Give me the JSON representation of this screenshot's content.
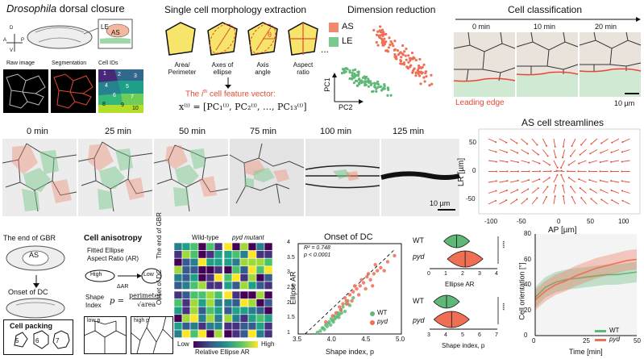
{
  "colors": {
    "as": "#f08a6e",
    "le": "#7cc98e",
    "as_dot": "#ef6f55",
    "le_dot": "#5fb878",
    "cell_yellow": "#f7e46a",
    "line_red": "#e24a33"
  },
  "panel1": {
    "title_italic": "Drosophila",
    "title_rest": "dorsal closure",
    "axis_d": "D",
    "axis_a": "A",
    "axis_p": "P",
    "axis_v": "V",
    "label_le": "LE",
    "label_as": "AS",
    "img_labels": [
      "Raw image",
      "Segmentation",
      "Cell IDs"
    ],
    "cell_ids": [
      "1",
      "2",
      "3",
      "4",
      "5",
      "6",
      "7",
      "8",
      "9",
      "10"
    ]
  },
  "panel2": {
    "title": "Single cell morphology extraction",
    "shape_labels": [
      [
        "Area/",
        "Perimeter"
      ],
      [
        "Axes of",
        "ellipse"
      ],
      [
        "Axis",
        "angle"
      ],
      [
        "Aspect",
        "ratio"
      ]
    ],
    "theta": "θ",
    "ellipsis": "...",
    "vector_title_pre": "The ",
    "vector_title_i": "i",
    "vector_title_th": "th",
    "vector_title_post": " cell feature vector:",
    "vector_formula": "x⁽ⁱ⁾ = [PC₁⁽ⁱ⁾, PC₂⁽ⁱ⁾, …, PC₁₃⁽ⁱ⁾]"
  },
  "panel3": {
    "title": "Dimension reduction",
    "legend": [
      "AS",
      "LE"
    ],
    "xlabel": "PC2",
    "ylabel": "PC1"
  },
  "panel4": {
    "title": "Cell classification",
    "times": [
      "0 min",
      "10 min",
      "20 min"
    ],
    "leading_edge": "Leading edge",
    "scale": "10 µm"
  },
  "row2": {
    "times": [
      "0 min",
      "25 min",
      "50 min",
      "75 min",
      "100 min",
      "125 min"
    ],
    "scale": "10 µm"
  },
  "streamlines": {
    "title": "AS cell streamlines",
    "xlabel": "AP [µm]",
    "ylabel": "LR [µm]",
    "xticks": [
      "-100",
      "-50",
      "0",
      "50",
      "100"
    ],
    "yticks": [
      "50",
      "0",
      "-50"
    ]
  },
  "bottom_left": {
    "gbr_end": "The end of GBR",
    "as": "AS",
    "dc_onset": "Onset of DC",
    "packing_title": "Cell packing",
    "packing_nums": [
      "5",
      "6",
      "7"
    ],
    "aniso_title": "Cell anisotropy",
    "fitted": [
      "Fitted Ellipse",
      "Aspect Ratio (AR)"
    ],
    "high": "High",
    "low": "Low",
    "dar": "ΔAR",
    "shape_index": [
      "Shape",
      "Index"
    ],
    "p_eq": "p =",
    "frac_num": "perimeter",
    "frac_den": "√area",
    "low_p": "low p",
    "high_p": "high p"
  },
  "heatmap": {
    "col_labels": [
      "Wild-type",
      "pyd mutant"
    ],
    "row_labels": [
      "The end of GBR",
      "Onset of DC"
    ],
    "cbar_low": "Low",
    "cbar_high": "High",
    "cbar_title": "Relative Ellipse AR"
  },
  "chart_data": [
    {
      "type": "scatter",
      "title": "Onset of DC",
      "xlabel": "Shape index, p",
      "ylabel": "Ellipse AR",
      "xlim": [
        3.5,
        5.0
      ],
      "ylim": [
        1,
        4
      ],
      "xticks": [
        "3.5",
        "4.0",
        "4.5",
        "5.0"
      ],
      "yticks": [
        "1",
        "1.5",
        "2",
        "2.5",
        "3",
        "3.5",
        "4"
      ],
      "annotation": [
        "R² = 0.748",
        "p < 0.0001"
      ],
      "legend": [
        "WT",
        "pyd"
      ],
      "series": [
        {
          "name": "WT",
          "x": [
            3.78,
            3.82,
            3.85,
            3.9,
            3.92,
            3.95,
            3.98,
            4.0,
            4.02,
            4.05,
            4.08,
            4.1,
            4.12,
            4.15,
            4.18,
            4.2,
            4.22,
            3.88,
            3.93,
            4.03,
            4.07,
            4.13,
            3.97,
            4.01,
            4.25,
            4.3,
            3.86,
            4.09
          ],
          "y": [
            1.05,
            1.1,
            1.2,
            1.3,
            1.25,
            1.4,
            1.5,
            1.45,
            1.6,
            1.55,
            1.7,
            1.65,
            1.8,
            1.9,
            1.75,
            2.0,
            2.1,
            1.15,
            1.35,
            1.5,
            1.6,
            1.7,
            1.3,
            1.4,
            1.95,
            2.2,
            1.2,
            1.55
          ]
        },
        {
          "name": "pyd",
          "x": [
            3.9,
            4.0,
            4.05,
            4.1,
            4.15,
            4.2,
            4.25,
            4.3,
            4.35,
            4.4,
            4.45,
            4.5,
            4.55,
            4.6,
            4.65,
            4.7,
            4.8,
            4.9,
            4.28,
            4.38,
            4.48,
            4.58,
            4.12,
            4.22,
            4.32,
            4.42,
            4.52,
            4.62,
            4.18,
            4.75
          ],
          "y": [
            1.4,
            1.6,
            1.7,
            1.9,
            2.0,
            2.1,
            2.3,
            2.4,
            2.5,
            2.6,
            2.7,
            2.9,
            2.8,
            3.0,
            3.1,
            3.2,
            3.4,
            3.6,
            2.1,
            2.3,
            2.5,
            2.6,
            1.8,
            2.0,
            2.6,
            2.8,
            3.0,
            3.3,
            2.2,
            3.1
          ]
        }
      ]
    },
    {
      "type": "violin",
      "xlabel": "Ellipse AR",
      "xticks": [
        "0",
        "1",
        "2",
        "3",
        "4"
      ],
      "xlim": [
        0,
        4
      ],
      "categories": [
        "WT",
        "pyd"
      ],
      "medians": [
        1.6,
        2.1
      ],
      "significance": "****"
    },
    {
      "type": "violin",
      "xlabel": "Shape index, p",
      "xticks": [
        "3",
        "4",
        "5",
        "6",
        "7"
      ],
      "xlim": [
        3,
        7
      ],
      "categories": [
        "WT",
        "pyd"
      ],
      "medians": [
        4.0,
        4.3
      ],
      "significance": "****"
    },
    {
      "type": "line",
      "xlabel": "Time [min]",
      "ylabel": "Cell orientation [°]",
      "xlim": [
        0,
        50
      ],
      "ylim": [
        0,
        80
      ],
      "xticks": [
        "0",
        "25",
        "50"
      ],
      "yticks": [
        "0",
        "20",
        "40",
        "60",
        "80"
      ],
      "legend": [
        "WT",
        "pyd"
      ],
      "series": [
        {
          "name": "WT",
          "x": [
            0,
            5,
            10,
            15,
            20,
            25,
            30,
            35,
            40,
            45,
            50
          ],
          "y": [
            30,
            38,
            42,
            44,
            45,
            46,
            47,
            48,
            48,
            49,
            50
          ]
        },
        {
          "name": "pyd",
          "x": [
            0,
            5,
            10,
            15,
            20,
            25,
            30,
            35,
            40,
            45,
            50
          ],
          "y": [
            28,
            35,
            40,
            43,
            47,
            50,
            53,
            55,
            57,
            59,
            60
          ]
        }
      ]
    }
  ]
}
